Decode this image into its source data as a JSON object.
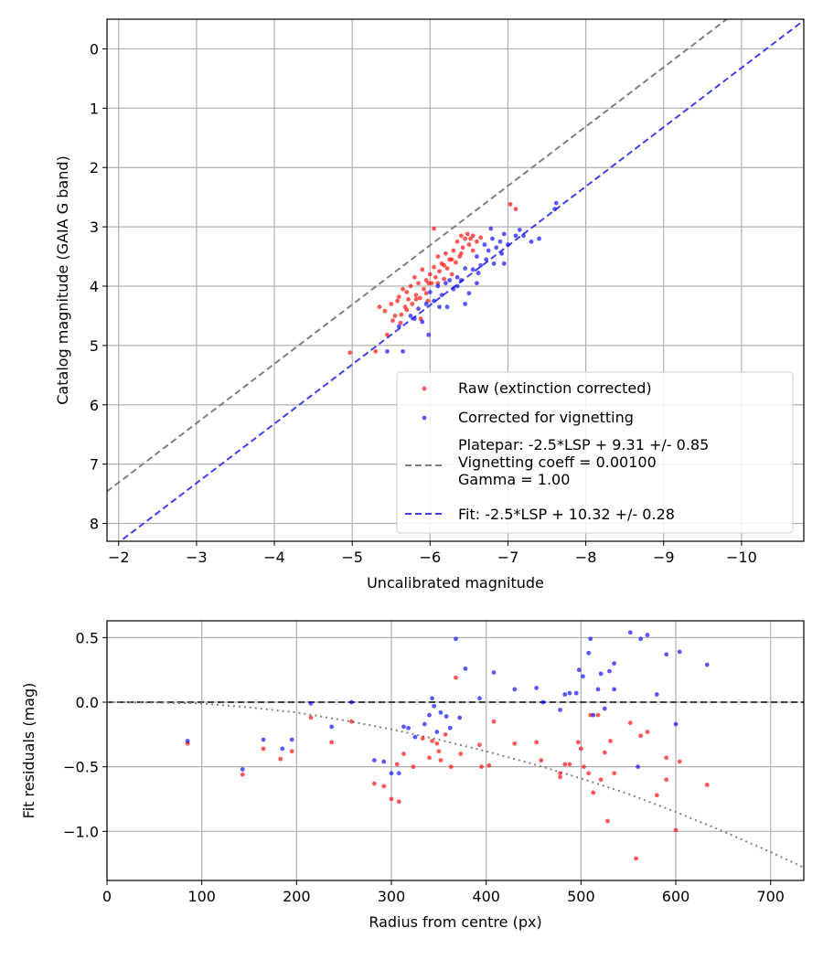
{
  "chart_data": [
    {
      "type": "scatter",
      "xlabel": "Uncalibrated magnitude",
      "ylabel": "Catalog magnitude (GAIA G band)",
      "xlim": [
        -1.85,
        -10.8
      ],
      "ylim": [
        8.3,
        -0.5
      ],
      "x_inverted": true,
      "y_inverted": true,
      "xticks": [
        -2,
        -3,
        -4,
        -5,
        -6,
        -7,
        -8,
        -9,
        -10
      ],
      "xticklabels": [
        "−2",
        "−3",
        "−4",
        "−5",
        "−6",
        "−7",
        "−8",
        "−9",
        "−10"
      ],
      "yticks": [
        0,
        1,
        2,
        3,
        4,
        5,
        6,
        7,
        8
      ],
      "yticklabels": [
        "0",
        "1",
        "2",
        "3",
        "4",
        "5",
        "6",
        "7",
        "8"
      ],
      "grid": true,
      "legend_position": "lower-right",
      "series": [
        {
          "name": "Raw (extinction corrected)",
          "kind": "scatter",
          "color": "#ff0000",
          "points": [
            [
              -4.97,
              5.12
            ],
            [
              -5.3,
              5.1
            ],
            [
              -5.35,
              4.35
            ],
            [
              -5.42,
              4.42
            ],
            [
              -5.45,
              4.82
            ],
            [
              -5.5,
              4.3
            ],
            [
              -5.52,
              4.58
            ],
            [
              -5.55,
              4.5
            ],
            [
              -5.58,
              4.25
            ],
            [
              -5.6,
              4.18
            ],
            [
              -5.62,
              4.62
            ],
            [
              -5.65,
              4.05
            ],
            [
              -5.68,
              4.35
            ],
            [
              -5.7,
              4.1
            ],
            [
              -5.72,
              4.22
            ],
            [
              -5.75,
              4.0
            ],
            [
              -5.77,
              4.3
            ],
            [
              -5.8,
              3.85
            ],
            [
              -5.82,
              4.15
            ],
            [
              -5.85,
              3.95
            ],
            [
              -5.87,
              4.2
            ],
            [
              -5.9,
              3.72
            ],
            [
              -5.92,
              4.05
            ],
            [
              -5.95,
              3.9
            ],
            [
              -5.97,
              4.25
            ],
            [
              -6.0,
              3.8
            ],
            [
              -6.02,
              3.95
            ],
            [
              -6.05,
              3.68
            ],
            [
              -6.07,
              3.85
            ],
            [
              -6.1,
              3.5
            ],
            [
              -6.12,
              3.75
            ],
            [
              -6.15,
              3.62
            ],
            [
              -6.18,
              3.88
            ],
            [
              -6.2,
              3.45
            ],
            [
              -6.22,
              3.7
            ],
            [
              -6.25,
              3.55
            ],
            [
              -6.28,
              3.8
            ],
            [
              -6.3,
              3.4
            ],
            [
              -6.33,
              3.6
            ],
            [
              -6.35,
              3.25
            ],
            [
              -6.38,
              3.5
            ],
            [
              -6.4,
              3.15
            ],
            [
              -6.42,
              3.35
            ],
            [
              -6.45,
              3.2
            ],
            [
              -6.48,
              3.12
            ],
            [
              -6.5,
              3.3
            ],
            [
              -6.52,
              3.2
            ],
            [
              -6.55,
              3.15
            ],
            [
              -6.6,
              3.25
            ],
            [
              -6.65,
              3.18
            ],
            [
              -6.05,
              3.03
            ],
            [
              -7.03,
              2.62
            ],
            [
              -7.1,
              2.7
            ],
            [
              -5.88,
              4.55
            ],
            [
              -5.63,
              4.48
            ],
            [
              -5.95,
              4.12
            ],
            [
              -6.1,
              3.95
            ],
            [
              -5.7,
              4.4
            ],
            [
              -6.18,
              3.65
            ],
            [
              -6.28,
              3.55
            ],
            [
              -5.82,
              4.22
            ],
            [
              -5.98,
              3.95
            ],
            [
              -6.4,
              3.45
            ],
            [
              -6.55,
              3.4
            ]
          ]
        },
        {
          "name": "Corrected for vignetting",
          "kind": "scatter",
          "color": "#0000ff",
          "points": [
            [
              -5.45,
              5.1
            ],
            [
              -5.65,
              5.1
            ],
            [
              -5.6,
              4.68
            ],
            [
              -5.75,
              4.5
            ],
            [
              -5.8,
              4.55
            ],
            [
              -5.85,
              4.38
            ],
            [
              -5.9,
              4.6
            ],
            [
              -5.95,
              4.3
            ],
            [
              -5.98,
              4.82
            ],
            [
              -6.0,
              4.1
            ],
            [
              -6.05,
              4.25
            ],
            [
              -6.1,
              4.0
            ],
            [
              -6.15,
              4.15
            ],
            [
              -6.2,
              3.95
            ],
            [
              -6.22,
              4.35
            ],
            [
              -6.25,
              3.9
            ],
            [
              -6.3,
              4.05
            ],
            [
              -6.35,
              3.85
            ],
            [
              -6.4,
              3.9
            ],
            [
              -6.45,
              3.7
            ],
            [
              -6.5,
              4.12
            ],
            [
              -6.55,
              3.72
            ],
            [
              -6.6,
              3.5
            ],
            [
              -6.65,
              3.65
            ],
            [
              -6.7,
              3.3
            ],
            [
              -6.72,
              3.55
            ],
            [
              -6.75,
              3.4
            ],
            [
              -6.8,
              3.2
            ],
            [
              -6.82,
              3.62
            ],
            [
              -6.85,
              3.35
            ],
            [
              -6.9,
              3.25
            ],
            [
              -6.95,
              3.12
            ],
            [
              -7.0,
              3.3
            ],
            [
              -7.1,
              3.15
            ],
            [
              -7.2,
              3.15
            ],
            [
              -7.3,
              3.25
            ],
            [
              -7.4,
              3.2
            ],
            [
              -7.62,
              2.6
            ],
            [
              -7.6,
              2.7
            ],
            [
              -6.6,
              3.95
            ],
            [
              -6.45,
              4.3
            ],
            [
              -6.35,
              4.0
            ],
            [
              -6.12,
              4.35
            ],
            [
              -6.92,
              3.45
            ],
            [
              -6.78,
              3.03
            ],
            [
              -6.62,
              3.78
            ],
            [
              -6.95,
              3.62
            ],
            [
              -7.15,
              3.05
            ]
          ]
        },
        {
          "name": "Platepar: -2.5*LSP + 9.31 +/- 0.85\nVignetting coeff = 0.00100\nGamma = 1.00",
          "kind": "line",
          "style": "dashed",
          "color": "#808080",
          "x": [
            -1.85,
            -10.8
          ],
          "y": [
            7.46,
            -1.49
          ]
        },
        {
          "name": "Fit: -2.5*LSP + 10.32 +/- 0.28",
          "kind": "line",
          "style": "dashed",
          "color": "#4040ee",
          "x": [
            -1.85,
            -10.8
          ],
          "y": [
            8.47,
            -0.48
          ]
        }
      ]
    },
    {
      "type": "scatter",
      "xlabel": "Radius from centre (px)",
      "ylabel": "Fit residuals (mag)",
      "xlim": [
        0,
        735
      ],
      "ylim": [
        -1.38,
        0.63
      ],
      "xticks": [
        0,
        100,
        200,
        300,
        400,
        500,
        600,
        700
      ],
      "xticklabels": [
        "0",
        "100",
        "200",
        "300",
        "400",
        "500",
        "600",
        "700"
      ],
      "yticks": [
        0.5,
        0.0,
        -0.5,
        -1.0
      ],
      "yticklabels": [
        "0.5",
        "0.0",
        "−0.5",
        "−1.0"
      ],
      "grid": true,
      "series": [
        {
          "kind": "scatter",
          "color": "#ff0000",
          "points": [
            [
              85,
              -0.32
            ],
            [
              143,
              -0.56
            ],
            [
              165,
              -0.36
            ],
            [
              183,
              -0.44
            ],
            [
              195,
              -0.38
            ],
            [
              215,
              -0.12
            ],
            [
              237,
              -0.31
            ],
            [
              258,
              -0.15
            ],
            [
              282,
              -0.63
            ],
            [
              292,
              -0.65
            ],
            [
              300,
              -0.75
            ],
            [
              306,
              -0.48
            ],
            [
              308,
              -0.77
            ],
            [
              313,
              -0.4
            ],
            [
              323,
              -0.5
            ],
            [
              333,
              -0.28
            ],
            [
              340,
              -0.43
            ],
            [
              343,
              -0.3
            ],
            [
              348,
              -0.32
            ],
            [
              352,
              -0.45
            ],
            [
              357,
              -0.25
            ],
            [
              363,
              -0.5
            ],
            [
              368,
              0.19
            ],
            [
              373,
              -0.4
            ],
            [
              393,
              -0.33
            ],
            [
              395,
              -0.5
            ],
            [
              403,
              -0.49
            ],
            [
              408,
              -0.15
            ],
            [
              430,
              -0.32
            ],
            [
              453,
              -0.31
            ],
            [
              458,
              -0.45
            ],
            [
              478,
              -0.58
            ],
            [
              483,
              -0.48
            ],
            [
              488,
              -0.48
            ],
            [
              497,
              -0.31
            ],
            [
              500,
              -0.36
            ],
            [
              503,
              -0.5
            ],
            [
              508,
              -0.55
            ],
            [
              510,
              -0.1
            ],
            [
              513,
              -0.7
            ],
            [
              518,
              -0.1
            ],
            [
              521,
              -0.6
            ],
            [
              525,
              -0.39
            ],
            [
              528,
              -0.92
            ],
            [
              531,
              -0.3
            ],
            [
              535,
              -0.55
            ],
            [
              552,
              -0.16
            ],
            [
              558,
              -1.21
            ],
            [
              563,
              -0.26
            ],
            [
              570,
              -0.23
            ],
            [
              580,
              -0.72
            ],
            [
              590,
              -0.43
            ],
            [
              600,
              -0.99
            ],
            [
              604,
              -0.46
            ],
            [
              633,
              -0.64
            ],
            [
              350,
              -0.38
            ],
            [
              478,
              -0.55
            ],
            [
              590,
              -0.6
            ]
          ]
        },
        {
          "kind": "scatter",
          "color": "#0000ff",
          "points": [
            [
              85,
              -0.3
            ],
            [
              143,
              -0.52
            ],
            [
              165,
              -0.29
            ],
            [
              185,
              -0.36
            ],
            [
              195,
              -0.29
            ],
            [
              215,
              -0.01
            ],
            [
              237,
              -0.19
            ],
            [
              258,
              0.0
            ],
            [
              282,
              -0.45
            ],
            [
              292,
              -0.46
            ],
            [
              300,
              -0.55
            ],
            [
              308,
              -0.55
            ],
            [
              313,
              -0.19
            ],
            [
              318,
              -0.2
            ],
            [
              325,
              -0.27
            ],
            [
              335,
              -0.17
            ],
            [
              340,
              -0.1
            ],
            [
              343,
              0.03
            ],
            [
              345,
              -0.03
            ],
            [
              348,
              -0.23
            ],
            [
              352,
              -0.08
            ],
            [
              358,
              -0.11
            ],
            [
              362,
              -0.2
            ],
            [
              368,
              0.49
            ],
            [
              372,
              -0.12
            ],
            [
              378,
              0.26
            ],
            [
              393,
              0.03
            ],
            [
              408,
              0.23
            ],
            [
              430,
              0.1
            ],
            [
              453,
              0.11
            ],
            [
              460,
              0.0
            ],
            [
              478,
              -0.06
            ],
            [
              483,
              0.06
            ],
            [
              488,
              0.07
            ],
            [
              495,
              0.07
            ],
            [
              498,
              0.25
            ],
            [
              502,
              0.2
            ],
            [
              508,
              0.38
            ],
            [
              510,
              0.49
            ],
            [
              513,
              -0.1
            ],
            [
              518,
              0.1
            ],
            [
              521,
              0.22
            ],
            [
              525,
              -0.05
            ],
            [
              530,
              0.24
            ],
            [
              535,
              0.3
            ],
            [
              535,
              0.1
            ],
            [
              552,
              0.54
            ],
            [
              560,
              -0.5
            ],
            [
              563,
              0.49
            ],
            [
              570,
              0.52
            ],
            [
              580,
              0.06
            ],
            [
              590,
              0.37
            ],
            [
              600,
              -0.17
            ],
            [
              604,
              0.39
            ],
            [
              633,
              0.29
            ]
          ]
        },
        {
          "kind": "line",
          "style": "dashed",
          "color": "#404040",
          "x": [
            0,
            735
          ],
          "y": [
            0,
            0
          ]
        },
        {
          "kind": "line",
          "style": "dotted",
          "color": "#808080",
          "x": [
            0,
            50,
            100,
            150,
            200,
            250,
            300,
            350,
            400,
            450,
            500,
            550,
            600,
            650,
            700,
            735
          ],
          "y": [
            0,
            -0.003,
            -0.01,
            -0.04,
            -0.08,
            -0.14,
            -0.21,
            -0.29,
            -0.38,
            -0.48,
            -0.59,
            -0.71,
            -0.85,
            -1.0,
            -1.16,
            -1.28
          ]
        }
      ]
    }
  ]
}
